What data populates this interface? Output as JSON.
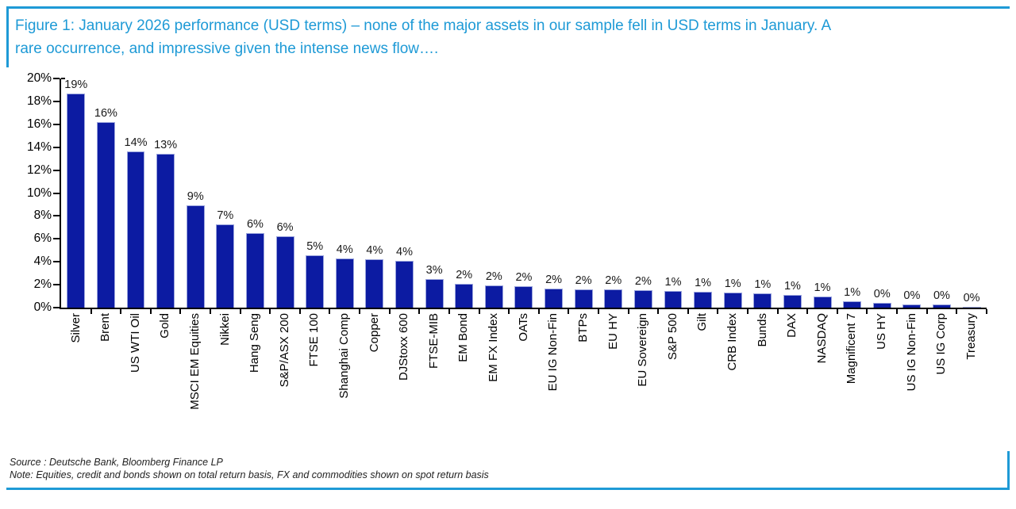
{
  "header": {
    "title_line1": "Figure 1: January 2026 performance (USD terms) – none of the major assets in our sample fell in USD terms in January. A",
    "title_line2": "rare occurrence, and impressive given the intense news flow…."
  },
  "chart_data": {
    "type": "bar",
    "title": "January 2026 performance (USD terms)",
    "categories": [
      "Silver",
      "Brent",
      "US WTI Oil",
      "Gold",
      "MSCI EM Equities",
      "Nikkei",
      "Hang Seng",
      "S&P/ASX 200",
      "FTSE 100",
      "Shanghai Comp",
      "Copper",
      "DJStoxx 600",
      "FTSE-MIB",
      "EM Bond",
      "EM FX Index",
      "OATs",
      "EU IG Non-Fin",
      "BTPs",
      "EU HY",
      "EU Sovereign",
      "S&P 500",
      "Gilt",
      "CRB Index",
      "Bunds",
      "DAX",
      "NASDAQ",
      "Magnificent 7",
      "US HY",
      "US IG Non-Fin",
      "US IG Corp",
      "Treasury"
    ],
    "values": [
      19.0,
      16.2,
      13.6,
      13.4,
      8.9,
      7.25,
      6.5,
      6.2,
      4.6,
      4.3,
      4.2,
      4.1,
      2.5,
      2.1,
      1.95,
      1.9,
      1.65,
      1.6,
      1.6,
      1.55,
      1.45,
      1.4,
      1.3,
      1.25,
      1.1,
      1.0,
      0.55,
      0.45,
      0.3,
      0.28,
      0.05
    ],
    "value_labels": [
      "19%",
      "16%",
      "14%",
      "13%",
      "9%",
      "7%",
      "6%",
      "6%",
      "5%",
      "4%",
      "4%",
      "4%",
      "3%",
      "2%",
      "2%",
      "2%",
      "2%",
      "2%",
      "2%",
      "2%",
      "1%",
      "1%",
      "1%",
      "1%",
      "1%",
      "1%",
      "1%",
      "0%",
      "0%",
      "0%",
      "0%"
    ],
    "y_ticks": [
      "20%",
      "18%",
      "16%",
      "14%",
      "12%",
      "10%",
      "8%",
      "6%",
      "4%",
      "2%",
      "0%"
    ],
    "ylim": [
      0,
      20
    ],
    "xlabel": "",
    "ylabel": "",
    "grid": false,
    "legend": "none"
  },
  "footer": {
    "source": "Source : Deutsche Bank, Bloomberg Finance LP",
    "note": "Note: Equities, credit and bonds shown on total return basis, FX and commodities shown on spot return basis"
  },
  "colors": {
    "accent": "#1e9ad6",
    "bar": "#0c1ba2",
    "bar_border": "#9aa4dd",
    "axis": "#000000"
  }
}
